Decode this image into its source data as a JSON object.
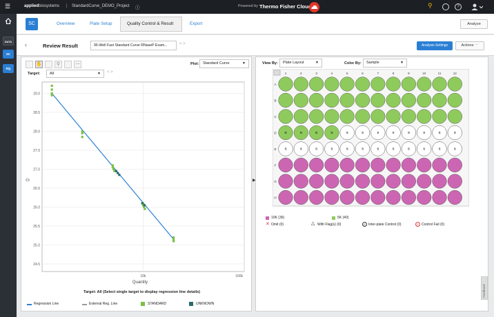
{
  "topbar": {
    "brand_bold": "applied",
    "brand_light": "biosystems",
    "project": "StandardCurve_DEMO_Project",
    "powered_by": "Powered by",
    "cloud_name": "Thermo Fisher Cloud",
    "menu_icon": "hamburger-icon",
    "user_icon": "user-icon"
  },
  "rail": {
    "items": [
      {
        "label": ""
      },
      {
        "label": "DATA"
      },
      {
        "label": "SC"
      },
      {
        "label": "RQ"
      }
    ]
  },
  "tabs": {
    "badge": "SC",
    "items": [
      {
        "label": "Overview"
      },
      {
        "label": "Plate Setup"
      },
      {
        "label": "Quality Control & Result"
      },
      {
        "label": "Export"
      }
    ],
    "analyze": "Analyze"
  },
  "review": {
    "title": "Review Result",
    "experiment": "96-Well Fast Standard Curve RNaseP Exam...",
    "analysis_settings": "Analysis Settings",
    "actions": "Actions ⋯"
  },
  "left": {
    "plot_label": "Plot:",
    "plot_value": "Standard Curve",
    "target_label": "Target:",
    "target_value": "All",
    "note": "Target: All (Select single target to display regression line details)",
    "legend": [
      {
        "label": "Regression Line",
        "color": "#2a7fd4"
      },
      {
        "label": "External Reg. Line",
        "color": "#999999"
      },
      {
        "label": "STANDARD",
        "color": "#7ac143"
      },
      {
        "label": "UNKNOWN",
        "color": "#2e6b6b"
      }
    ]
  },
  "chart_data": {
    "type": "scatter",
    "xlabel": "Quantity",
    "ylabel": "Ct",
    "x_scale": "log",
    "xlim": [
      1000,
      100000
    ],
    "ylim": [
      24.3,
      29.3
    ],
    "xticks": [
      "10k",
      "100k"
    ],
    "yticks": [
      "24.5",
      "25.0",
      "25.5",
      "26.0",
      "26.5",
      "27.0",
      "27.5",
      "28.0",
      "28.5",
      "29.0"
    ],
    "grid": true,
    "regression_line": {
      "x": [
        1250,
        20000
      ],
      "y": [
        29.0,
        25.15
      ]
    },
    "series": [
      {
        "name": "STANDARD",
        "color": "#7ac143",
        "points": [
          [
            1250,
            29.1
          ],
          [
            1250,
            29.0
          ],
          [
            1250,
            28.95
          ],
          [
            1250,
            29.2
          ],
          [
            2500,
            28.0
          ],
          [
            2500,
            27.95
          ],
          [
            2500,
            27.85
          ],
          [
            5000,
            27.1
          ],
          [
            5000,
            27.05
          ],
          [
            5200,
            26.95
          ],
          [
            5100,
            27.0
          ],
          [
            10000,
            26.1
          ],
          [
            10000,
            26.05
          ],
          [
            10200,
            26.0
          ],
          [
            10400,
            25.95
          ],
          [
            20000,
            25.2
          ],
          [
            20000,
            25.15
          ],
          [
            20000,
            25.1
          ]
        ]
      },
      {
        "name": "UNKNOWN",
        "color": "#2e6b6b",
        "points": [
          [
            5400,
            26.95
          ],
          [
            5600,
            26.9
          ],
          [
            5800,
            26.85
          ],
          [
            9800,
            26.1
          ],
          [
            10300,
            26.05
          ]
        ]
      }
    ]
  },
  "right": {
    "view_by_label": "View By:",
    "view_by_value": "Plate Layout",
    "color_by_label": "Color By:",
    "color_by_value": "Sample",
    "columns": [
      "1",
      "2",
      "3",
      "4",
      "5",
      "6",
      "7",
      "8",
      "9",
      "10",
      "11",
      "12"
    ],
    "rows": [
      "A",
      "B",
      "C",
      "D",
      "E",
      "F",
      "G",
      "H"
    ],
    "row_fill": [
      "green",
      "green",
      "green",
      "mixed",
      "white",
      "pink",
      "pink",
      "pink"
    ],
    "row_d_labels": [
      "N",
      "N",
      "N",
      "N",
      "S",
      "S",
      "S",
      "S",
      "S",
      "S",
      "S",
      "S"
    ],
    "row_e_labels": [
      "S",
      "S",
      "S",
      "S",
      "S",
      "S",
      "S",
      "S",
      "S",
      "S",
      "S",
      "S"
    ],
    "colors": {
      "green": "#8fcb5c",
      "pink": "#cc66b3",
      "white": "#ffffff"
    },
    "legend": [
      {
        "label": "10K (36)",
        "color": "#cc66b3",
        "icon": "square-icon"
      },
      {
        "label": "5K (40)",
        "color": "#8fcb5c",
        "icon": "square-icon"
      },
      {
        "label": "Omit (0)",
        "color": "#e03a3a",
        "icon": "x-icon"
      },
      {
        "label": "With Flag(s) (0)",
        "color": "#333333",
        "icon": "triangle-icon"
      },
      {
        "label": "Inter-plate Control (0)",
        "color": "#333333",
        "icon": "c-circle-icon"
      },
      {
        "label": "Control Fail (0)",
        "color": "#e03a3a",
        "icon": "c-circle-icon"
      }
    ],
    "feedback": "Feedback"
  }
}
